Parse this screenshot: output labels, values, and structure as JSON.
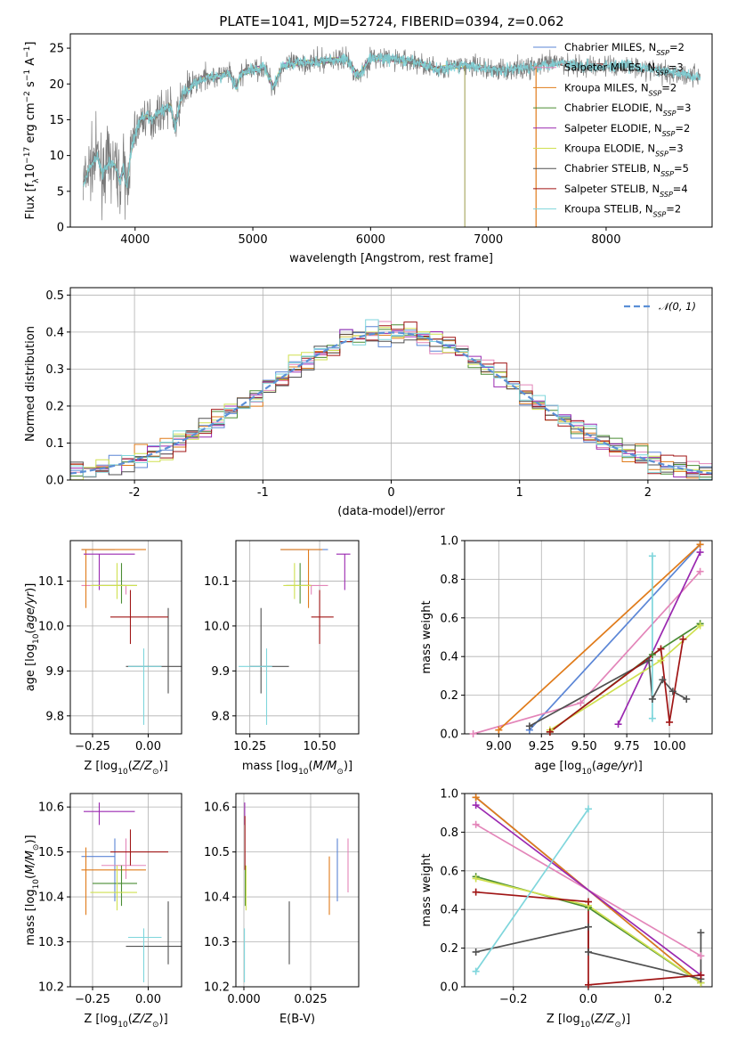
{
  "figure": {
    "title": "PLATE=1041, MJD=52724, FIBERID=0394, z=0.062",
    "colors": {
      "Chabrier MILES": "#5b86d6",
      "Salpeter MILES": "#e385b9",
      "Kroupa MILES": "#e07b1a",
      "Chabrier ELODIE": "#4a8c33",
      "Salpeter ELODIE": "#9a28b0",
      "Kroupa ELODIE": "#cfe050",
      "Chabrier STELIB": "#505050",
      "Salpeter STELIB": "#a01515",
      "Kroupa STELIB": "#7fd6dc"
    }
  },
  "chart_data": [
    {
      "id": "spectrum",
      "type": "line",
      "xlabel": "wavelength [Angstrom, rest frame]",
      "ylabel": "Flux [f_λ10^-17 erg cm^-2 s^-1 A^-1]",
      "xlim": [
        3450,
        8900
      ],
      "ylim": [
        0,
        27
      ],
      "xticks": [
        4000,
        5000,
        6000,
        7000,
        8000
      ],
      "yticks": [
        0,
        5,
        10,
        15,
        20,
        25
      ],
      "grid": false,
      "legend_position": "right",
      "data_color": "#7a7a7a",
      "data_approx": {
        "x": [
          3560,
          3620,
          3680,
          3720,
          3780,
          3830,
          3870,
          3900,
          3930,
          3960,
          4000,
          4050,
          4100,
          4150,
          4200,
          4300,
          4340,
          4400,
          4500,
          4600,
          4700,
          4800,
          4861,
          4900,
          5000,
          5100,
          5175,
          5250,
          5400,
          5500,
          5600,
          5800,
          5893,
          6000,
          6200,
          6400,
          6563,
          6700,
          6900,
          7000,
          7200,
          7400,
          7600,
          7800,
          8000,
          8200,
          8400,
          8600,
          8800
        ],
        "y": [
          6,
          8.5,
          10,
          7.5,
          9,
          8.5,
          6.5,
          8,
          5.5,
          10,
          13,
          15,
          15.5,
          15,
          16,
          17,
          14,
          18.5,
          20,
          21,
          21,
          21.5,
          19.5,
          21.5,
          22,
          22.3,
          19.5,
          22.5,
          23,
          23,
          23.2,
          23.5,
          21,
          23.6,
          23.5,
          23,
          22,
          22.5,
          22.5,
          22,
          22,
          22.5,
          23,
          22.5,
          22.5,
          22.5,
          22,
          21.5,
          21
        ]
      },
      "series": [
        {
          "name": "Chabrier MILES",
          "label": "Chabrier MILES, N_SSP=2",
          "n_ssp": 2,
          "xmax": 7400
        },
        {
          "name": "Salpeter MILES",
          "label": "Salpeter MILES, N_SSP=3",
          "n_ssp": 3,
          "xmax": 7400
        },
        {
          "name": "Kroupa MILES",
          "label": "Kroupa MILES, N_SSP=2",
          "n_ssp": 2,
          "xmax": 7400
        },
        {
          "name": "Chabrier ELODIE",
          "label": "Chabrier ELODIE, N_SSP=3",
          "n_ssp": 3,
          "xmax": 6800
        },
        {
          "name": "Salpeter ELODIE",
          "label": "Salpeter ELODIE, N_SSP=2",
          "n_ssp": 2,
          "xmax": 6800
        },
        {
          "name": "Kroupa ELODIE",
          "label": "Kroupa ELODIE, N_SSP=3",
          "n_ssp": 3,
          "xmax": 6800
        },
        {
          "name": "Chabrier STELIB",
          "label": "Chabrier STELIB, N_SSP=5",
          "n_ssp": 5,
          "xmax": 8800
        },
        {
          "name": "Salpeter STELIB",
          "label": "Salpeter STELIB, N_SSP=4",
          "n_ssp": 4,
          "xmax": 8800
        },
        {
          "name": "Kroupa STELIB",
          "label": "Kroupa STELIB, N_SSP=2",
          "n_ssp": 2,
          "xmax": 8800
        }
      ]
    },
    {
      "id": "residuals",
      "type": "line",
      "xlabel": "(data-model)/error",
      "ylabel": "Normed distribution",
      "xlim": [
        -2.5,
        2.5
      ],
      "ylim": [
        0,
        0.52
      ],
      "xticks": [
        -2,
        -1,
        0,
        1,
        2
      ],
      "yticks": [
        0.0,
        0.1,
        0.2,
        0.3,
        0.4,
        0.5
      ],
      "grid": true,
      "legend_position": "top-right",
      "reference_curve": {
        "label": "𝒩(0, 1)",
        "mean": 0,
        "sigma": 1,
        "color": "#5b8fd6",
        "style": "dashed"
      },
      "histogram_bin_width": 0.1,
      "histogram_style": "step",
      "note_values": "step histograms of normalized residuals for each of the nine model fits; bar heights follow N(0,1) with scatter of about ±0.05"
    },
    {
      "id": "age_vs_Z",
      "type": "scatter",
      "xlabel": "Z [log10(Z/Z⊙)]",
      "ylabel": "age  [log10(age/yr)]",
      "xlim": [
        -0.35,
        0.15
      ],
      "ylim": [
        9.76,
        10.19
      ],
      "xticks": [
        -0.25,
        0.0
      ],
      "xtick_labels": [
        "−0.25",
        "0.00"
      ],
      "yticks": [
        9.8,
        9.9,
        10.0,
        10.1
      ],
      "grid": true,
      "points": [
        {
          "series": "Chabrier MILES",
          "x": -0.15,
          "xerr": [
            0.15,
            0.0
          ],
          "y": 10.17,
          "yerr": [
            0.0,
            0.0
          ]
        },
        {
          "series": "Salpeter MILES",
          "x": -0.1,
          "xerr": [
            0.2,
            0.0
          ],
          "y": 10.09,
          "yerr": [
            0.02,
            0.0
          ]
        },
        {
          "series": "Kroupa MILES",
          "x": -0.28,
          "xerr": [
            0.02,
            0.27
          ],
          "y": 10.17,
          "yerr": [
            0.13,
            0.0
          ]
        },
        {
          "series": "Chabrier ELODIE",
          "x": -0.12,
          "xerr": [
            0.13,
            0.07
          ],
          "y": 10.09,
          "yerr": [
            0.04,
            0.05
          ]
        },
        {
          "series": "Salpeter ELODIE",
          "x": -0.22,
          "xerr": [
            0.07,
            0.16
          ],
          "y": 10.16,
          "yerr": [
            0.08,
            0.0
          ]
        },
        {
          "series": "Kroupa ELODIE",
          "x": -0.14,
          "xerr": [
            0.12,
            0.09
          ],
          "y": 10.09,
          "yerr": [
            0.03,
            0.05
          ]
        },
        {
          "series": "Chabrier STELIB",
          "x": 0.09,
          "xerr": [
            0.19,
            0.06
          ],
          "y": 9.91,
          "yerr": [
            0.06,
            0.13
          ]
        },
        {
          "series": "Salpeter STELIB",
          "x": -0.08,
          "xerr": [
            0.09,
            0.17
          ],
          "y": 10.02,
          "yerr": [
            0.06,
            0.06
          ]
        },
        {
          "series": "Kroupa STELIB",
          "x": -0.02,
          "xerr": [
            0.07,
            0.08
          ],
          "y": 9.91,
          "yerr": [
            0.13,
            0.04
          ]
        }
      ]
    },
    {
      "id": "age_vs_mass",
      "type": "scatter",
      "xlabel": "mass [log10(M/M⊙)]",
      "ylabel": "",
      "xlim": [
        10.2,
        10.64
      ],
      "ylim": [
        9.76,
        10.19
      ],
      "xticks": [
        10.25,
        10.5
      ],
      "xtick_labels": [
        "10.25",
        "10.50"
      ],
      "yticks": [
        9.8,
        9.9,
        10.0,
        10.1
      ],
      "grid": true,
      "points": [
        {
          "series": "Chabrier MILES",
          "x": 10.48,
          "xerr": [
            0.12,
            0.05
          ],
          "y": 10.17,
          "yerr": [
            0.0,
            0.0
          ]
        },
        {
          "series": "Salpeter MILES",
          "x": 10.47,
          "xerr": [
            0.04,
            0.06
          ],
          "y": 10.09,
          "yerr": [
            0.02,
            0.0
          ]
        },
        {
          "series": "Kroupa MILES",
          "x": 10.46,
          "xerr": [
            0.1,
            0.05
          ],
          "y": 10.17,
          "yerr": [
            0.13,
            0.0
          ]
        },
        {
          "series": "Chabrier ELODIE",
          "x": 10.43,
          "xerr": [
            0.05,
            0.04
          ],
          "y": 10.09,
          "yerr": [
            0.04,
            0.05
          ]
        },
        {
          "series": "Salpeter ELODIE",
          "x": 10.59,
          "xerr": [
            0.03,
            0.02
          ],
          "y": 10.16,
          "yerr": [
            0.08,
            0.0
          ]
        },
        {
          "series": "Kroupa ELODIE",
          "x": 10.41,
          "xerr": [
            0.04,
            0.06
          ],
          "y": 10.09,
          "yerr": [
            0.03,
            0.05
          ]
        },
        {
          "series": "Chabrier STELIB",
          "x": 10.29,
          "xerr": [
            0.04,
            0.1
          ],
          "y": 9.91,
          "yerr": [
            0.06,
            0.13
          ]
        },
        {
          "series": "Salpeter STELIB",
          "x": 10.5,
          "xerr": [
            0.03,
            0.05
          ],
          "y": 10.02,
          "yerr": [
            0.06,
            0.06
          ]
        },
        {
          "series": "Kroupa STELIB",
          "x": 10.31,
          "xerr": [
            0.1,
            0.02
          ],
          "y": 9.91,
          "yerr": [
            0.13,
            0.04
          ]
        }
      ]
    },
    {
      "id": "weight_vs_age",
      "type": "line",
      "xlabel": "age  [log10(age/yr)]",
      "ylabel": "mass weight",
      "xlim": [
        8.8,
        10.25
      ],
      "ylim": [
        0.0,
        1.0
      ],
      "xticks": [
        9.0,
        9.25,
        9.5,
        9.75,
        10.0
      ],
      "xtick_labels": [
        "9.00",
        "9.25",
        "9.50",
        "9.75",
        "10.00"
      ],
      "yticks": [
        0.0,
        0.2,
        0.4,
        0.6,
        0.8,
        1.0
      ],
      "grid": true,
      "series": [
        {
          "name": "Chabrier MILES",
          "x": [
            9.18,
            10.18
          ],
          "y": [
            0.02,
            0.98
          ]
        },
        {
          "name": "Salpeter MILES",
          "x": [
            8.85,
            9.48,
            10.18
          ],
          "y": [
            0.0,
            0.16,
            0.84
          ]
        },
        {
          "name": "Kroupa MILES",
          "x": [
            9.0,
            10.18
          ],
          "y": [
            0.02,
            0.98
          ]
        },
        {
          "name": "Chabrier ELODIE",
          "x": [
            9.3,
            9.9,
            10.18
          ],
          "y": [
            0.01,
            0.41,
            0.57
          ]
        },
        {
          "name": "Salpeter ELODIE",
          "x": [
            9.7,
            10.18
          ],
          "y": [
            0.05,
            0.94
          ]
        },
        {
          "name": "Kroupa ELODIE",
          "x": [
            9.3,
            9.95,
            10.18
          ],
          "y": [
            0.02,
            0.38,
            0.56
          ]
        },
        {
          "name": "Chabrier STELIB",
          "x": [
            9.18,
            9.88,
            9.9,
            9.96,
            10.02,
            10.1
          ],
          "y": [
            0.04,
            0.38,
            0.18,
            0.28,
            0.22,
            0.18
          ]
        },
        {
          "name": "Salpeter STELIB",
          "x": [
            9.3,
            9.95,
            10.0,
            10.08
          ],
          "y": [
            0.01,
            0.44,
            0.06,
            0.49
          ]
        },
        {
          "name": "Kroupa STELIB",
          "x": [
            9.9,
            9.9
          ],
          "y": [
            0.08,
            0.92
          ]
        }
      ]
    },
    {
      "id": "mass_vs_Z",
      "type": "scatter",
      "xlabel": "Z [log10(Z/Z⊙)]",
      "ylabel": "mass [log10(M/M⊙)]",
      "xlim": [
        -0.35,
        0.15
      ],
      "ylim": [
        10.2,
        10.63
      ],
      "xticks": [
        -0.25,
        0.0
      ],
      "xtick_labels": [
        "−0.25",
        "0.00"
      ],
      "yticks": [
        10.2,
        10.3,
        10.4,
        10.5,
        10.6
      ],
      "grid": true,
      "points": [
        {
          "series": "Chabrier MILES",
          "x": -0.15,
          "xerr": [
            0.15,
            0.0
          ],
          "y": 10.49,
          "yerr": [
            0.1,
            0.04
          ]
        },
        {
          "series": "Salpeter MILES",
          "x": -0.1,
          "xerr": [
            0.11,
            0.09
          ],
          "y": 10.47,
          "yerr": [
            0.03,
            0.06
          ]
        },
        {
          "series": "Kroupa MILES",
          "x": -0.28,
          "xerr": [
            0.02,
            0.27
          ],
          "y": 10.46,
          "yerr": [
            0.1,
            0.05
          ]
        },
        {
          "series": "Chabrier ELODIE",
          "x": -0.12,
          "xerr": [
            0.13,
            0.07
          ],
          "y": 10.43,
          "yerr": [
            0.05,
            0.04
          ]
        },
        {
          "series": "Salpeter ELODIE",
          "x": -0.22,
          "xerr": [
            0.07,
            0.16
          ],
          "y": 10.59,
          "yerr": [
            0.03,
            0.02
          ]
        },
        {
          "series": "Kroupa ELODIE",
          "x": -0.14,
          "xerr": [
            0.12,
            0.09
          ],
          "y": 10.41,
          "yerr": [
            0.04,
            0.06
          ]
        },
        {
          "series": "Chabrier STELIB",
          "x": 0.09,
          "xerr": [
            0.19,
            0.06
          ],
          "y": 10.29,
          "yerr": [
            0.04,
            0.1
          ]
        },
        {
          "series": "Salpeter STELIB",
          "x": -0.08,
          "xerr": [
            0.09,
            0.17
          ],
          "y": 10.5,
          "yerr": [
            0.03,
            0.05
          ]
        },
        {
          "series": "Kroupa STELIB",
          "x": -0.02,
          "xerr": [
            0.07,
            0.08
          ],
          "y": 10.31,
          "yerr": [
            0.1,
            0.02
          ]
        }
      ]
    },
    {
      "id": "mass_vs_ebv",
      "type": "scatter",
      "xlabel": "E(B-V)",
      "ylabel": "",
      "xlim": [
        -0.003,
        0.043
      ],
      "ylim": [
        10.2,
        10.63
      ],
      "xticks": [
        0.0,
        0.025
      ],
      "xtick_labels": [
        "0.000",
        "0.025"
      ],
      "yticks": [
        10.2,
        10.3,
        10.4,
        10.5,
        10.6
      ],
      "grid": true,
      "points": [
        {
          "series": "Chabrier MILES",
          "x": 0.035,
          "y": 10.49,
          "yerr": [
            0.1,
            0.04
          ]
        },
        {
          "series": "Salpeter MILES",
          "x": 0.039,
          "y": 10.47,
          "yerr": [
            0.06,
            0.06
          ]
        },
        {
          "series": "Kroupa MILES",
          "x": 0.032,
          "y": 10.46,
          "yerr": [
            0.1,
            0.03
          ]
        },
        {
          "series": "Chabrier ELODIE",
          "x": 0.0005,
          "y": 10.43,
          "yerr": [
            0.05,
            0.04
          ]
        },
        {
          "series": "Salpeter ELODIE",
          "x": 0.0003,
          "y": 10.59,
          "yerr": [
            0.03,
            0.02
          ]
        },
        {
          "series": "Kroupa ELODIE",
          "x": 0.0008,
          "y": 10.41,
          "yerr": [
            0.04,
            0.06
          ]
        },
        {
          "series": "Chabrier STELIB",
          "x": 0.017,
          "y": 10.29,
          "yerr": [
            0.04,
            0.1
          ]
        },
        {
          "series": "Salpeter STELIB",
          "x": 0.0004,
          "y": 10.5,
          "yerr": [
            0.04,
            0.08
          ]
        },
        {
          "series": "Kroupa STELIB",
          "x": 0.0002,
          "y": 10.31,
          "yerr": [
            0.1,
            0.02
          ]
        }
      ]
    },
    {
      "id": "weight_vs_Z",
      "type": "line",
      "xlabel": "Z [log10(Z/Z⊙)]",
      "ylabel": "mass weight",
      "xlim": [
        -0.33,
        0.33
      ],
      "ylim": [
        0.0,
        1.0
      ],
      "xticks": [
        -0.2,
        0.0,
        0.2
      ],
      "xtick_labels": [
        "−0.2",
        "0.0",
        "0.2"
      ],
      "yticks": [
        0.0,
        0.2,
        0.4,
        0.6,
        0.8,
        1.0
      ],
      "grid": true,
      "series": [
        {
          "name": "Chabrier MILES",
          "x": [
            -0.3,
            0.3
          ],
          "y": [
            0.98,
            0.02
          ]
        },
        {
          "name": "Salpeter MILES",
          "x": [
            -0.3,
            0.3
          ],
          "y": [
            0.84,
            0.16
          ]
        },
        {
          "name": "Kroupa MILES",
          "x": [
            -0.3,
            0.3
          ],
          "y": [
            0.98,
            0.02
          ]
        },
        {
          "name": "Chabrier ELODIE",
          "x": [
            -0.3,
            0.0,
            0.3
          ],
          "y": [
            0.57,
            0.41,
            0.02
          ]
        },
        {
          "name": "Salpeter ELODIE",
          "x": [
            -0.3,
            0.3
          ],
          "y": [
            0.94,
            0.06
          ]
        },
        {
          "name": "Kroupa ELODIE",
          "x": [
            -0.3,
            0.0,
            0.3
          ],
          "y": [
            0.56,
            0.42,
            0.02
          ]
        },
        {
          "name": "Chabrier STELIB",
          "x": [
            -0.3,
            0.0,
            0.0,
            0.3,
            0.3
          ],
          "y": [
            0.18,
            0.31,
            0.18,
            0.04,
            0.28
          ]
        },
        {
          "name": "Salpeter STELIB",
          "x": [
            -0.3,
            0.0,
            0.0,
            0.3
          ],
          "y": [
            0.49,
            0.44,
            0.01,
            0.06
          ]
        },
        {
          "name": "Kroupa STELIB",
          "x": [
            -0.3,
            0.0
          ],
          "y": [
            0.08,
            0.92
          ]
        }
      ]
    }
  ]
}
